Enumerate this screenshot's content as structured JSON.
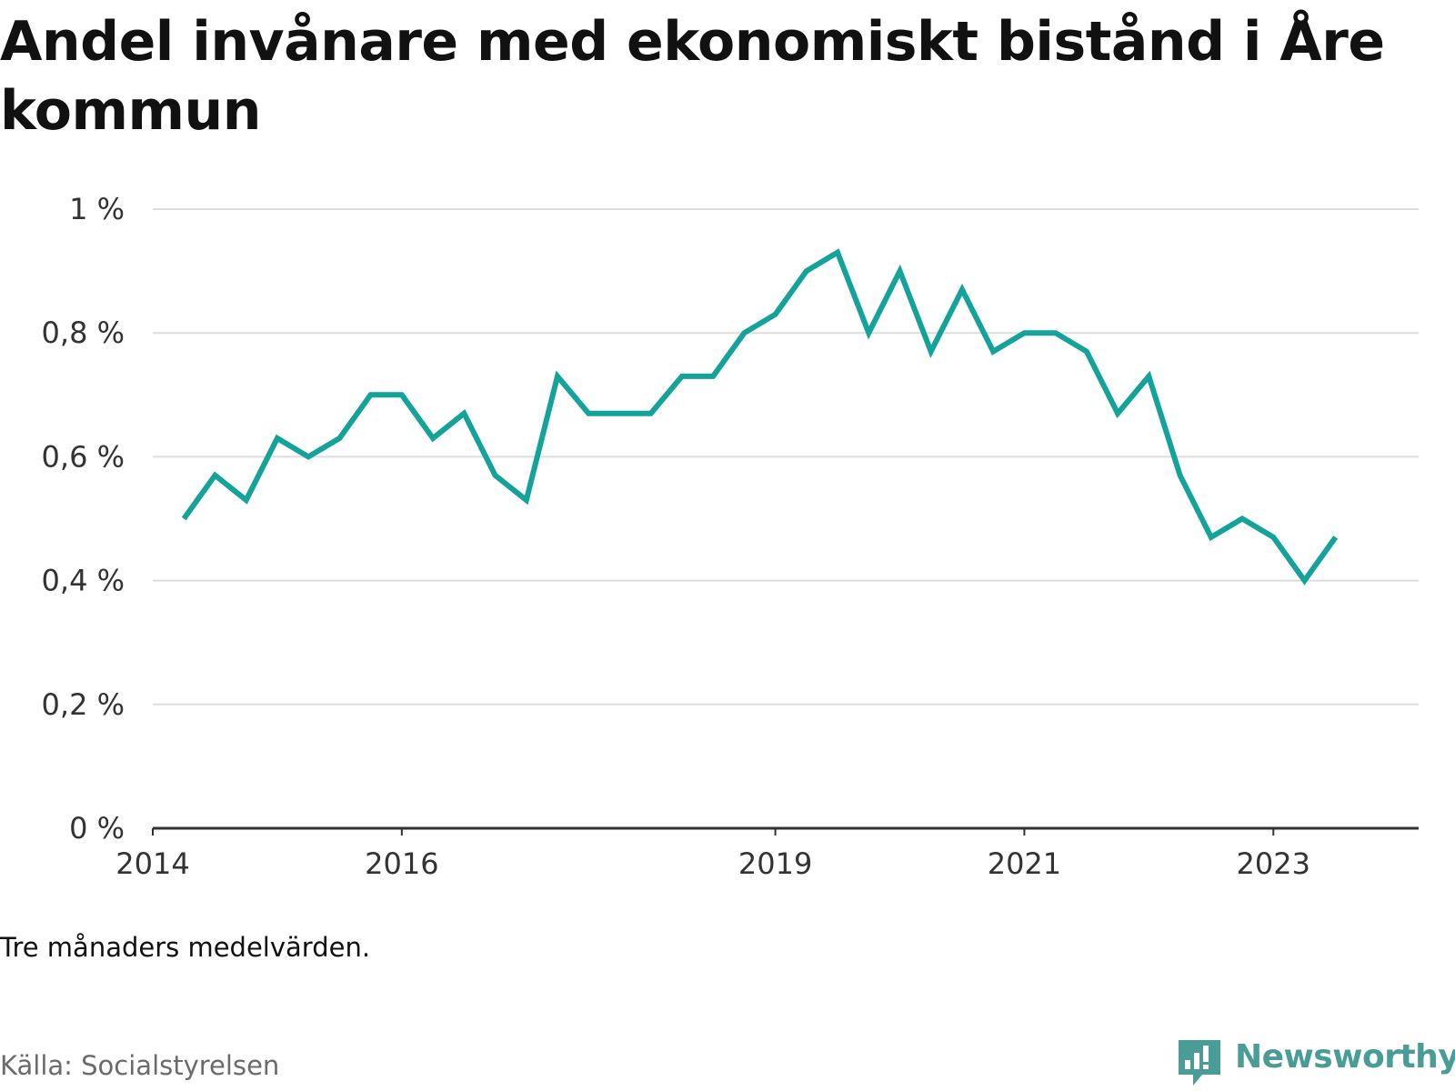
{
  "title": "Andel invånare med ekonomiskt bistånd i Åre kommun",
  "note": "Tre månaders medelvärden.",
  "source": "Källa: Socialstyrelsen",
  "brand": "Newsworthy",
  "colors": {
    "line": "#14a39a",
    "grid": "#dddddd",
    "axis": "#333333",
    "brand": "#4a9d97"
  },
  "chart_data": {
    "type": "line",
    "title": "Andel invånare med ekonomiskt bistånd i Åre kommun",
    "xlabel": "",
    "ylabel": "",
    "ylim": [
      0,
      1
    ],
    "yticks": [
      {
        "value": 0,
        "label": "0 %"
      },
      {
        "value": 0.2,
        "label": "0,2 %"
      },
      {
        "value": 0.4,
        "label": "0,4 %"
      },
      {
        "value": 0.6,
        "label": "0,6 %"
      },
      {
        "value": 0.8,
        "label": "0,8 %"
      },
      {
        "value": 1,
        "label": "1 %"
      }
    ],
    "xticks": [
      {
        "date": "2014-01",
        "label": "2014"
      },
      {
        "date": "2016-01",
        "label": "2016"
      },
      {
        "date": "2019-01",
        "label": "2019"
      },
      {
        "date": "2021-01",
        "label": "2021"
      },
      {
        "date": "2023-01",
        "label": "2023"
      }
    ],
    "xlim": [
      "2014-01",
      "2024-03"
    ],
    "grid": true,
    "series": [
      {
        "x": [
          "2014-04",
          "2014-07",
          "2014-10",
          "2015-01",
          "2015-04",
          "2015-07",
          "2015-10",
          "2016-01",
          "2016-04",
          "2016-07",
          "2016-10",
          "2017-01",
          "2017-04",
          "2017-07",
          "2017-10",
          "2018-01",
          "2018-04",
          "2018-07",
          "2018-10",
          "2019-01",
          "2019-04",
          "2019-07",
          "2019-10",
          "2020-01",
          "2020-04",
          "2020-07",
          "2020-10",
          "2021-01",
          "2021-04",
          "2021-07",
          "2021-10",
          "2022-01",
          "2022-04",
          "2022-07",
          "2022-10",
          "2023-01",
          "2023-04",
          "2023-07"
        ],
        "values": [
          0.5,
          0.57,
          0.53,
          0.63,
          0.6,
          0.63,
          0.7,
          0.7,
          0.63,
          0.67,
          0.57,
          0.53,
          0.73,
          0.67,
          0.67,
          0.67,
          0.73,
          0.73,
          0.8,
          0.83,
          0.9,
          0.93,
          0.8,
          0.9,
          0.77,
          0.87,
          0.77,
          0.8,
          0.8,
          0.77,
          0.67,
          0.73,
          0.57,
          0.47,
          0.5,
          0.47,
          0.4,
          0.47
        ]
      }
    ]
  }
}
